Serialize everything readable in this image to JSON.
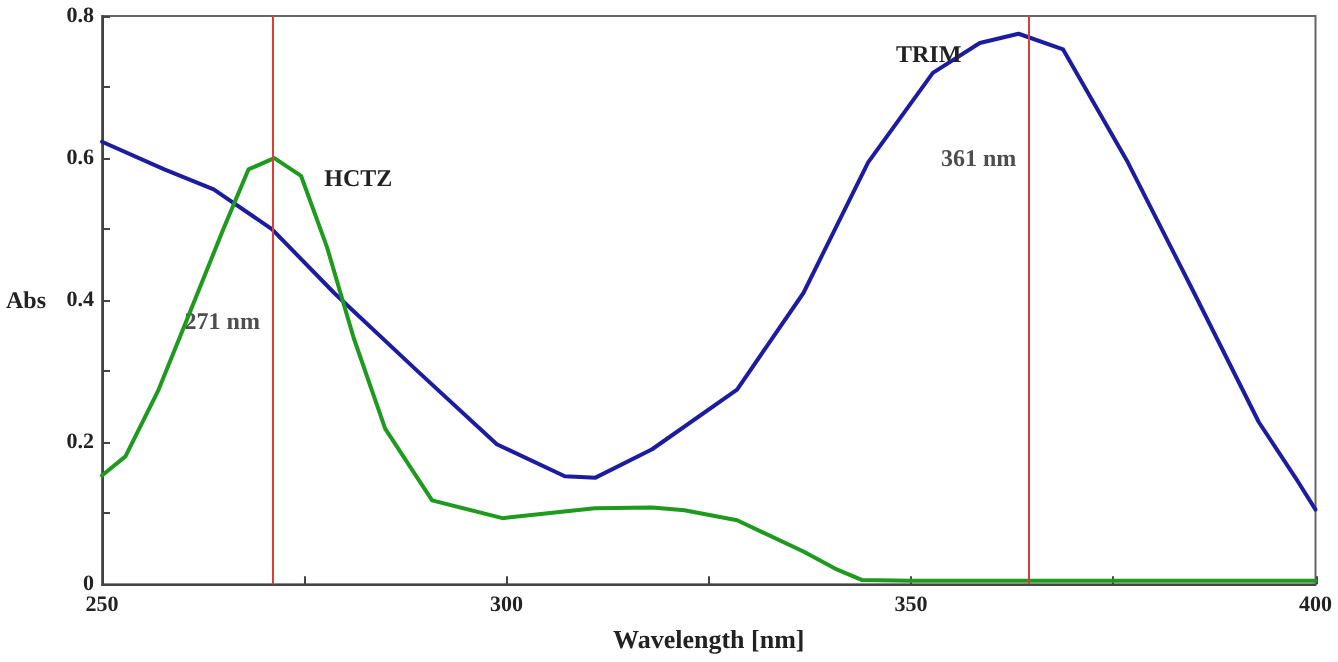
{
  "chart_data": {
    "type": "line",
    "xlabel": "Wavelength [nm]",
    "ylabel": "Abs",
    "xlim": [
      250,
      400
    ],
    "xticks": [
      250,
      {
        "value": 275,
        "label": null
      },
      300,
      {
        "value": 325,
        "label": null
      },
      350,
      {
        "value": 375,
        "label": null
      },
      400
    ],
    "ylim": [
      0,
      0.8
    ],
    "yticks": [
      0,
      {
        "value": 0.1,
        "label": null
      },
      0.2,
      {
        "value": 0.3,
        "label": null
      },
      0.4,
      {
        "value": 0.5,
        "label": null
      },
      0.6,
      {
        "value": 0.7,
        "label": null
      },
      0.8
    ],
    "grid": false,
    "legend": false,
    "marker": "none",
    "line_style": "solid",
    "series": [
      {
        "name": "TRIM",
        "color": "#1c1ca0",
        "x": [
          250,
          257.7,
          263.8,
          271,
          278.7,
          289,
          298.8,
          307.2,
          311,
          318,
          328.5,
          336.7,
          344.7,
          352.7,
          358.5,
          363.3,
          368.8,
          376.8,
          385,
          393,
          397.8,
          400
        ],
        "values": [
          0.623,
          0.584,
          0.556,
          0.5,
          0.41,
          0.3,
          0.197,
          0.152,
          0.15,
          0.19,
          0.274,
          0.41,
          0.594,
          0.72,
          0.762,
          0.775,
          0.753,
          0.594,
          0.41,
          0.228,
          0.145,
          0.105
        ]
      },
      {
        "name": "HCTZ",
        "color": "#1e9a1e",
        "x": [
          250,
          252.9,
          257,
          260.9,
          265,
          268.1,
          271.3,
          274.6,
          277.8,
          281.1,
          285,
          290.8,
          299.5,
          310.9,
          318,
          322,
          328.5,
          336.7,
          340.6,
          343.9,
          350,
          400
        ],
        "values": [
          0.153,
          0.18,
          0.274,
          0.384,
          0.5,
          0.584,
          0.6,
          0.575,
          0.475,
          0.347,
          0.219,
          0.118,
          0.093,
          0.107,
          0.108,
          0.104,
          0.09,
          0.046,
          0.022,
          0.006,
          0.005,
          0.005
        ]
      }
    ],
    "ref_lines": [
      {
        "axis": "x",
        "value": 271,
        "color": "#e03a3a"
      },
      {
        "axis": "x",
        "value": 364.5,
        "color": "#e03a3a"
      }
    ],
    "annotations": [
      {
        "text": "271 nm",
        "x": 271,
        "y": 0.37
      },
      {
        "text": "361 nm",
        "x": 364.5,
        "y": 0.6
      }
    ]
  }
}
